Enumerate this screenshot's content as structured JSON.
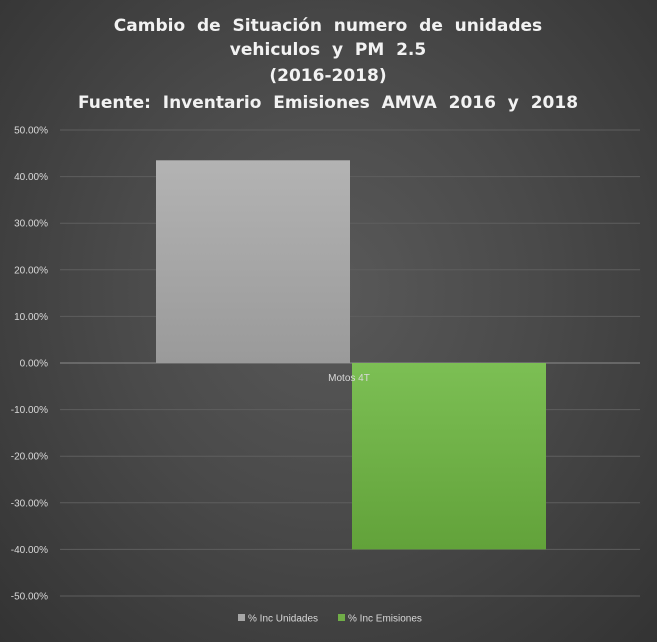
{
  "chart_data": {
    "type": "bar",
    "title_lines": [
      "Cambio  de  Situación  numero  de  unidades",
      "vehiculos  y  PM  2.5",
      "(2016-2018)",
      "Fuente:  Inventario  Emisiones  AMVA  2016  y  2018"
    ],
    "categories": [
      "Motos 4T"
    ],
    "series": [
      {
        "name": "% Inc Unidades",
        "values": [
          43.5
        ],
        "color": "#a6a6a6"
      },
      {
        "name": "% Inc Emisiones",
        "values": [
          -40.0
        ],
        "color": "#70ad47"
      }
    ],
    "ylim": [
      -50,
      50
    ],
    "ytick_step": 10,
    "ytick_labels": [
      "50.00%",
      "40.00%",
      "30.00%",
      "20.00%",
      "10.00%",
      "0.00%",
      "-10.00%",
      "-20.00%",
      "-30.00%",
      "-40.00%",
      "-50.00%"
    ],
    "grid": true,
    "legend_position": "bottom"
  }
}
